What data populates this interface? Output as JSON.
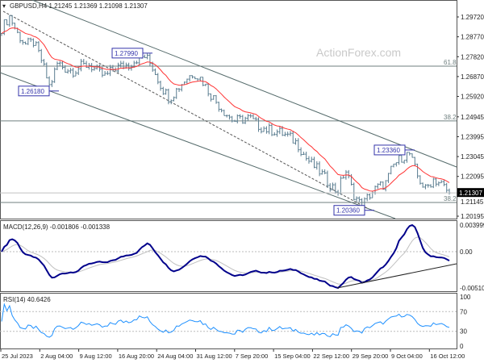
{
  "header": {
    "symbol_line": "GBPUSD,H4  1.21245 1.21369 1.21098 1.21307"
  },
  "watermark": "ActionForex.com",
  "chart_data": [
    {
      "type": "ohlc",
      "symbol": "GBPUSD",
      "timeframe": "H4",
      "ohlc_readout": {
        "open": 1.21245,
        "high": 1.21369,
        "low": 1.21098,
        "close": 1.21307
      },
      "current_price": "1.21307",
      "ylim": [
        1.20195,
        1.2972
      ],
      "y_ticks": [
        "1.29720",
        "1.28770",
        "1.27820",
        "1.26870",
        "1.25920",
        "1.24945",
        "1.23995",
        "1.23045",
        "1.22095",
        "1.21145",
        "1.20195"
      ],
      "x_ticks": [
        "25 Jul 2023",
        "2 Aug 04:00",
        "9 Aug 12:00",
        "16 Aug 20:00",
        "24 Aug 04:00",
        "31 Aug 12:00",
        "7 Sep 20:00",
        "15 Sep 04:00",
        "22 Sep 12:00",
        "29 Sep 20:00",
        "9 Oct 04:00",
        "16 Oct 12:00"
      ],
      "approx_closes": [
        1.2918,
        1.2976,
        1.2891,
        1.2841,
        1.2852,
        1.2764,
        1.2637,
        1.2752,
        1.2725,
        1.2714,
        1.2737,
        1.2745,
        1.2706,
        1.2687,
        1.2725,
        1.2737,
        1.2745,
        1.2775,
        1.2783,
        1.2725,
        1.2637,
        1.2583,
        1.2629,
        1.2675,
        1.2706,
        1.2675,
        1.261,
        1.2559,
        1.2513,
        1.2475,
        1.2482,
        1.249,
        1.2455,
        1.2436,
        1.2428,
        1.2417,
        1.2397,
        1.2367,
        1.2301,
        1.2262,
        1.2224,
        1.2174,
        1.2135,
        1.2243,
        1.2128,
        1.2066,
        1.212,
        1.2158,
        1.2174,
        1.2262,
        1.2301,
        1.232,
        1.2212,
        1.2147,
        1.2197,
        1.2174,
        1.2128
      ],
      "annotations": [
        {
          "label": "1.27990",
          "price": 1.2799
        },
        {
          "label": "1.26180",
          "price": 1.2618
        },
        {
          "label": "1.23360",
          "price": 1.2336
        },
        {
          "label": "1.20360",
          "price": 1.2036
        }
      ],
      "fib_levels": [
        {
          "label": "61.8",
          "price": 1.2737
        },
        {
          "label": "38.2",
          "price": 1.2475
        },
        {
          "label": "38.2",
          "price": 1.2085
        }
      ],
      "moving_average_color": "#ff3333",
      "bar_color": "#5a7d90"
    },
    {
      "type": "line",
      "title": "MACD(12,26,9) -0.001806 -0.001338",
      "y_ticks": [
        "0.003999",
        "0.00",
        "-0.005103"
      ],
      "ylim": [
        -0.005103,
        0.003999
      ],
      "main_color": "#00008b",
      "signal_color": "#c0c0c0"
    },
    {
      "type": "line",
      "title": "RSI(14) 40.6426",
      "y_ticks": [
        "100",
        "70",
        "30",
        "0"
      ],
      "ylim": [
        0,
        100
      ],
      "levels": [
        70,
        30
      ],
      "color": "#1e90ff"
    }
  ]
}
